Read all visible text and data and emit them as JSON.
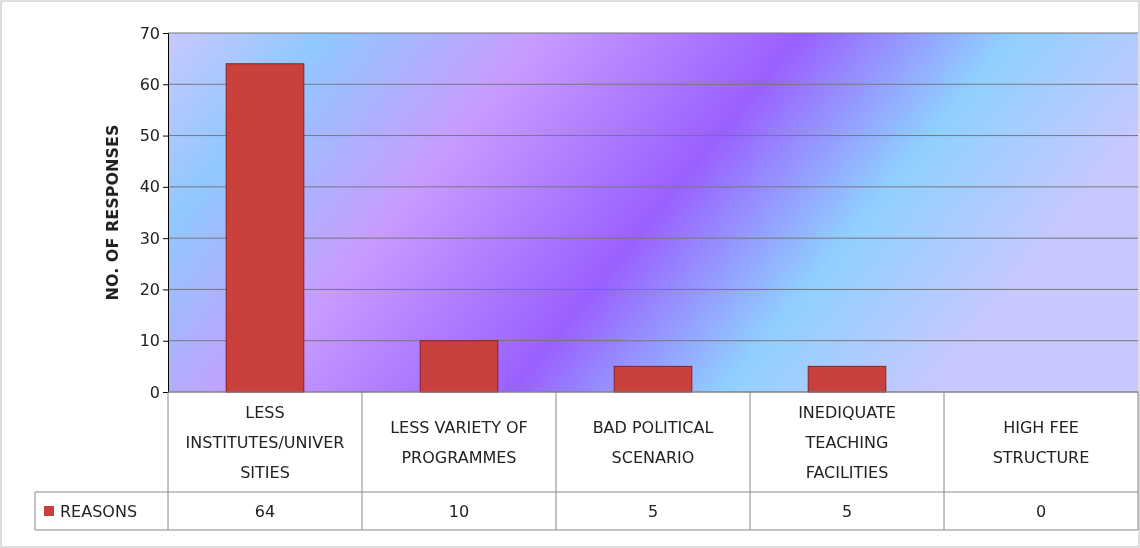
{
  "chart_data": {
    "type": "bar",
    "ylabel": "NO. OF RESPONSES",
    "categories": [
      "LESS INSTITUTES/UNIVERSITIES",
      "LESS VARIETY OF PROGRAMMES",
      "BAD POLITICAL SCENARIO",
      "INEDIQUATE TEACHING FACILITIES",
      "HIGH FEE STRUCTURE"
    ],
    "series": [
      {
        "name": "REASONS",
        "color": "#c9403d",
        "values": [
          64,
          10,
          5,
          5,
          0
        ]
      }
    ],
    "ylim": [
      0,
      70
    ],
    "yticks": [
      0,
      10,
      20,
      30,
      40,
      50,
      60,
      70
    ],
    "grid": "y",
    "data_labels": true,
    "legend": "bottom left"
  }
}
